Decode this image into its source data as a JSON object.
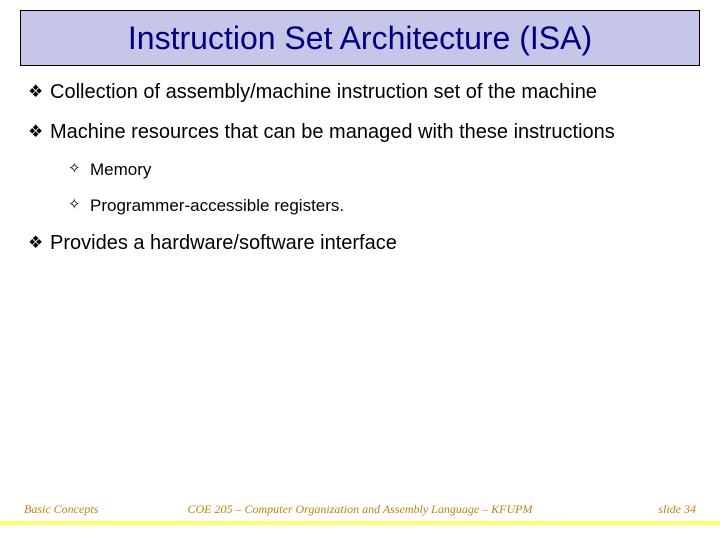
{
  "title": "Instruction Set Architecture (ISA)",
  "title_color": "#000080",
  "title_bg": "#c6c6e9",
  "title_border": "#000000",
  "title_fontsize": 32,
  "body_fontsize": 20,
  "sub_fontsize": 17,
  "bullet_glyph": "❖",
  "sub_bullet_glyph": "✧",
  "bullets": {
    "b1": "Collection of assembly/machine instruction set of the machine",
    "b2": "Machine resources that can be managed with these instructions",
    "b2_sub1": "Memory",
    "b2_sub2": "Programmer-accessible registers.",
    "b3": "Provides a hardware/software interface"
  },
  "footer": {
    "left": "Basic Concepts",
    "center": "COE 205 – Computer Organization and Assembly Language – KFUPM",
    "right": "slide 34",
    "color": "#b8860b",
    "bar_color": "#ffff66"
  }
}
